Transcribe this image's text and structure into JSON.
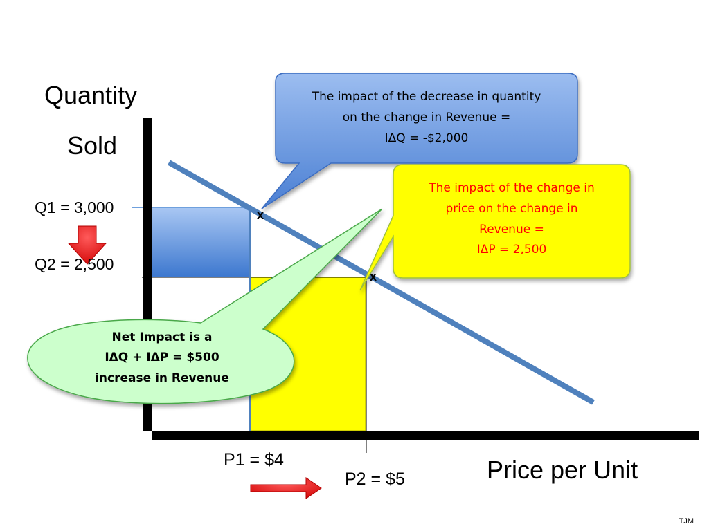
{
  "axes": {
    "y_title_line1": "Quantity",
    "y_title_line2": "Sold",
    "x_title": "Price per Unit"
  },
  "quantity_labels": {
    "q1": "Q1 = 3,000",
    "q2": "Q2 = 2,500"
  },
  "price_labels": {
    "p1": "P1 = $4",
    "p2": "P2 = $5"
  },
  "points": {
    "mark": "x"
  },
  "callouts": {
    "quantity_impact": {
      "lines": [
        "The impact of the decrease in quantity",
        "on the change in Revenue =",
        "IΔQ = -$2,000"
      ],
      "fill": "#5b8fd6",
      "text_color": "#000000"
    },
    "price_impact": {
      "lines": [
        "The impact of the change in",
        "price on the change in",
        "Revenue =",
        "IΔP = 2,500"
      ],
      "fill": "#ffff00",
      "text_color": "#ff0000"
    },
    "net_impact": {
      "lines": [
        "Net Impact is a",
        "IΔQ + IΔP = $500",
        "increase in Revenue"
      ],
      "fill": "#ccffcc",
      "text_color": "#000000"
    }
  },
  "colors": {
    "demand_line": "#4f81bd",
    "blue_area": "#4a86d8",
    "yellow_area": "#ffff00",
    "arrow_red": "#ff0000"
  },
  "footer": {
    "credit": "TJM"
  }
}
